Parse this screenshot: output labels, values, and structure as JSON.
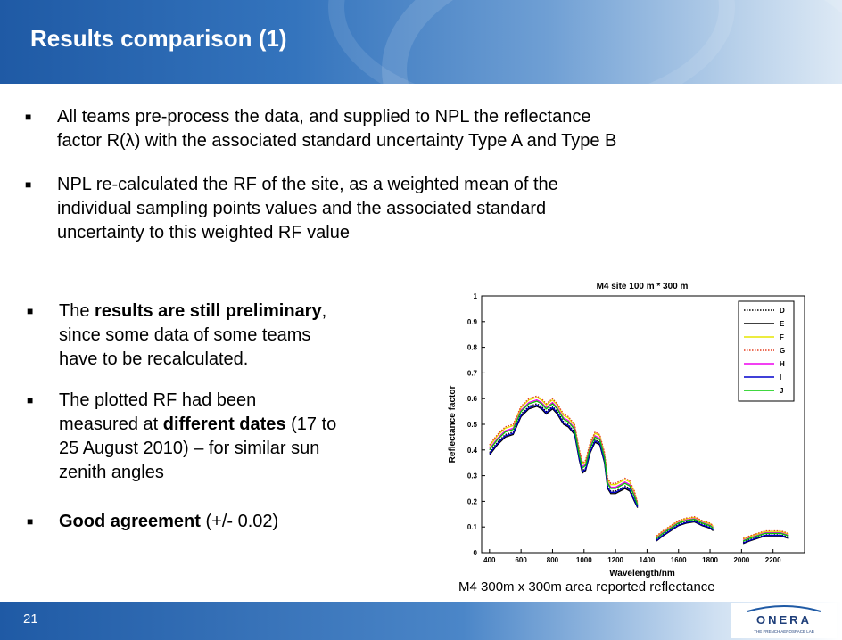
{
  "slide": {
    "title": "Results comparison (1)",
    "page_number": "21",
    "logo_text": "ONERA",
    "logo_subtext": "THE FRENCH AEROSPACE LAB"
  },
  "bullets": [
    {
      "parts": [
        "All teams pre-process the data, and supplied to NPL the reflectance",
        "factor R(",
        "λ",
        ") with the associated standard uncertainty Type A and Type B"
      ]
    },
    {
      "lines": [
        "NPL re-calculated the RF of the site, as a weighted mean of the",
        "individual sampling points values and the associated standard",
        "uncertainty to this weighted RF value"
      ]
    },
    {
      "segments": [
        "The ",
        "results are still preliminary",
        ",",
        "since some data of some teams",
        "have to be recalculated."
      ]
    },
    {
      "segments": [
        "The plotted RF had been",
        "measured at ",
        "different dates",
        " (17 to",
        "25  August 2010) – for similar sun",
        "zenith angles"
      ]
    },
    {
      "segments": [
        "Good agreement",
        " (+/- 0.02)"
      ]
    }
  ],
  "caption": "M4 300m x 300m area reported  reflectance",
  "chart_data": {
    "type": "line",
    "title": "M4 site 100 m * 300 m",
    "xlabel": "Wavelength/nm",
    "ylabel": "Reflectance factor",
    "xlim": [
      350,
      2400
    ],
    "ylim": [
      0,
      1
    ],
    "xticks": [
      400,
      600,
      800,
      1000,
      1200,
      1400,
      1600,
      1800,
      2000,
      2200
    ],
    "yticks": [
      "0",
      "0.1",
      "0.2",
      "0.3",
      "0.4",
      "0.5",
      "0.6",
      "0.7",
      "0.8",
      "0.9",
      "1"
    ],
    "legend_position": "top-right",
    "colors": {
      "D": "#000000",
      "E": "#000000",
      "F": "#e6e600",
      "G": "#e63c1e",
      "H": "#ee00ee",
      "I": "#0000cc",
      "J": "#00cc00"
    },
    "series": [
      {
        "name": "D",
        "offset": 0.0,
        "dashed": true
      },
      {
        "name": "E",
        "offset": -0.01,
        "dashed": false
      },
      {
        "name": "F",
        "offset": 0.025,
        "dashed": false
      },
      {
        "name": "G",
        "offset": 0.03,
        "dashed": true
      },
      {
        "name": "H",
        "offset": 0.015,
        "dashed": false
      },
      {
        "name": "I",
        "offset": -0.005,
        "dashed": false
      },
      {
        "name": "J",
        "offset": 0.01,
        "dashed": false
      }
    ],
    "base_curve": {
      "segment1": [
        [
          400,
          0.39
        ],
        [
          450,
          0.43
        ],
        [
          500,
          0.46
        ],
        [
          550,
          0.47
        ],
        [
          600,
          0.54
        ],
        [
          650,
          0.57
        ],
        [
          700,
          0.58
        ],
        [
          730,
          0.57
        ],
        [
          760,
          0.55
        ],
        [
          800,
          0.57
        ],
        [
          830,
          0.55
        ],
        [
          870,
          0.51
        ],
        [
          900,
          0.5
        ],
        [
          940,
          0.47
        ],
        [
          970,
          0.37
        ],
        [
          990,
          0.32
        ],
        [
          1010,
          0.33
        ],
        [
          1040,
          0.4
        ],
        [
          1070,
          0.44
        ],
        [
          1100,
          0.43
        ],
        [
          1130,
          0.36
        ],
        [
          1150,
          0.26
        ],
        [
          1170,
          0.24
        ],
        [
          1200,
          0.24
        ],
        [
          1230,
          0.25
        ],
        [
          1260,
          0.26
        ],
        [
          1290,
          0.25
        ],
        [
          1320,
          0.21
        ],
        [
          1340,
          0.18
        ]
      ],
      "segment2": [
        [
          1460,
          0.05
        ],
        [
          1500,
          0.07
        ],
        [
          1550,
          0.09
        ],
        [
          1600,
          0.11
        ],
        [
          1650,
          0.12
        ],
        [
          1700,
          0.125
        ],
        [
          1750,
          0.11
        ],
        [
          1800,
          0.1
        ],
        [
          1820,
          0.09
        ]
      ],
      "segment3": [
        [
          2010,
          0.04
        ],
        [
          2050,
          0.05
        ],
        [
          2100,
          0.06
        ],
        [
          2150,
          0.07
        ],
        [
          2200,
          0.07
        ],
        [
          2250,
          0.07
        ],
        [
          2300,
          0.06
        ]
      ]
    }
  }
}
